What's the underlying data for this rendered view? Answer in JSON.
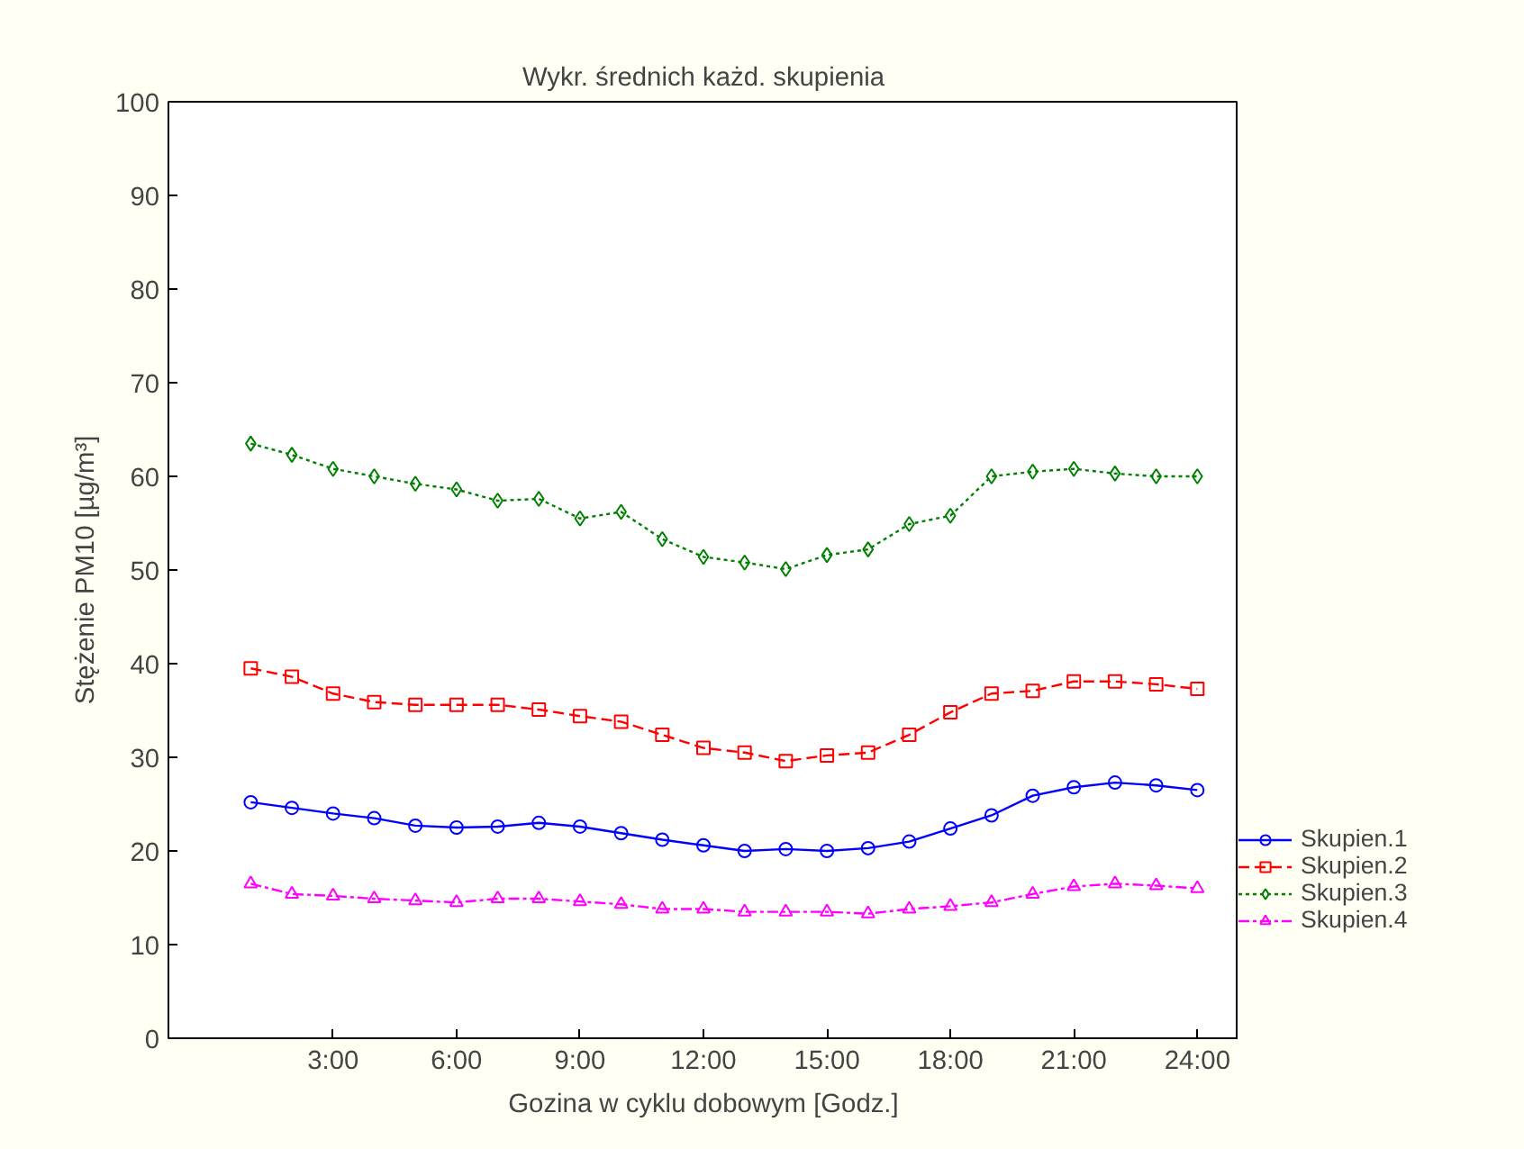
{
  "chart_data": {
    "type": "line",
    "title": "Wykr. średnich każd. skupienia",
    "xlabel": "Gozina w cyklu dobowym [Godz.]",
    "ylabel": "Stężenie PM10 [µg/m³]",
    "x": [
      1,
      2,
      3,
      4,
      5,
      6,
      7,
      8,
      9,
      10,
      11,
      12,
      13,
      14,
      15,
      16,
      17,
      18,
      19,
      20,
      21,
      22,
      23,
      24
    ],
    "series": [
      {
        "name": "Skupien.1",
        "color": "#0000ff",
        "marker": "circle",
        "line_style": "solid",
        "values": [
          25.2,
          24.6,
          24.0,
          23.5,
          22.7,
          22.5,
          22.6,
          23.0,
          22.6,
          21.9,
          21.2,
          20.6,
          20.0,
          20.2,
          20.0,
          20.3,
          21.0,
          22.4,
          23.8,
          25.9,
          26.8,
          27.3,
          27.0,
          26.5
        ]
      },
      {
        "name": "Skupien.2",
        "color": "#ff0000",
        "marker": "square",
        "line_style": "dashed",
        "values": [
          39.5,
          38.6,
          36.8,
          35.9,
          35.6,
          35.6,
          35.6,
          35.1,
          34.4,
          33.8,
          32.4,
          31.0,
          30.5,
          29.6,
          30.2,
          30.5,
          32.4,
          34.8,
          36.8,
          37.1,
          38.1,
          38.1,
          37.8,
          37.3
        ]
      },
      {
        "name": "Skupien.3",
        "color": "#008000",
        "marker": "diamond",
        "line_style": "dotted",
        "values": [
          63.5,
          62.3,
          60.8,
          60.0,
          59.2,
          58.6,
          57.4,
          57.6,
          55.5,
          56.2,
          53.3,
          51.4,
          50.8,
          50.1,
          51.6,
          52.2,
          54.9,
          55.8,
          60.0,
          60.5,
          60.8,
          60.3,
          60.0,
          60.0
        ]
      },
      {
        "name": "Skupien.4",
        "color": "#ff00ff",
        "marker": "triangle",
        "line_style": "dashdot",
        "values": [
          16.5,
          15.4,
          15.2,
          14.9,
          14.7,
          14.5,
          14.9,
          14.9,
          14.6,
          14.3,
          13.8,
          13.8,
          13.5,
          13.5,
          13.5,
          13.3,
          13.8,
          14.1,
          14.5,
          15.4,
          16.2,
          16.5,
          16.3,
          16.0
        ]
      }
    ],
    "xlim": [
      -1,
      25
    ],
    "xticks": [
      {
        "value": 3,
        "label": "3:00"
      },
      {
        "value": 6,
        "label": "6:00"
      },
      {
        "value": 9,
        "label": "9:00"
      },
      {
        "value": 12,
        "label": "12:00"
      },
      {
        "value": 15,
        "label": "15:00"
      },
      {
        "value": 18,
        "label": "18:00"
      },
      {
        "value": 21,
        "label": "21:00"
      },
      {
        "value": 24,
        "label": "24:00"
      }
    ],
    "ylim": [
      0,
      100
    ],
    "yticks": [
      0,
      10,
      20,
      30,
      40,
      50,
      60,
      70,
      80,
      90,
      100
    ],
    "grid": false,
    "legend": "bottom right"
  }
}
